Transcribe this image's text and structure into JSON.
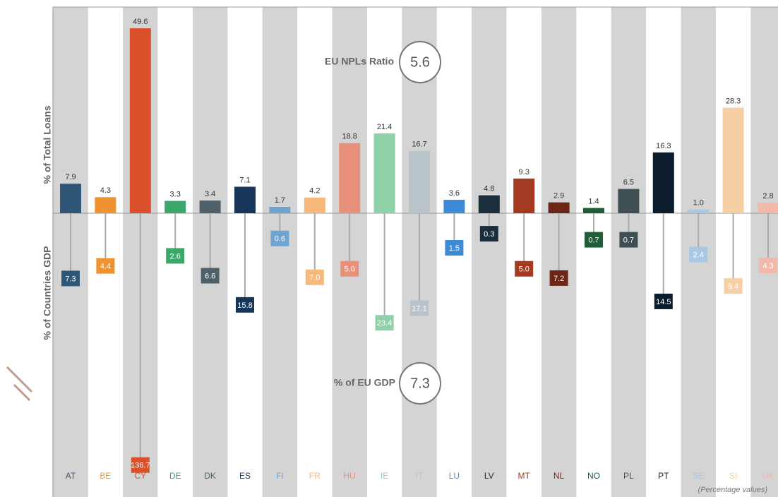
{
  "chart_data": {
    "type": "bar-lollipop",
    "axis_label_top": "% of Total Loans",
    "axis_label_bottom": "% of Countries GDP",
    "note": "(Percentage values)",
    "categories": [
      "AT",
      "BE",
      "CY",
      "DE",
      "DK",
      "ES",
      "FI",
      "FR",
      "HU",
      "IE",
      "IT",
      "LU",
      "LV",
      "MT",
      "NL",
      "NO",
      "PL",
      "PT",
      "SE",
      "SI",
      "UK"
    ],
    "colors": [
      "#2f5677",
      "#f0922f",
      "#d9502b",
      "#3aa86b",
      "#4f6069",
      "#17375a",
      "#6fa3d0",
      "#f5b97c",
      "#e8917a",
      "#8fd1a8",
      "#b9c4ca",
      "#3d8bd6",
      "#1a2e3b",
      "#a33a21",
      "#6e2614",
      "#1e5e38",
      "#3f4f54",
      "#0b1c2c",
      "#a9c8e4",
      "#f7cfa5",
      "#f2b8a8"
    ],
    "series": [
      {
        "values": [
          7.9,
          4.3,
          49.6,
          3.3,
          3.4,
          7.1,
          1.7,
          4.2,
          18.8,
          21.4,
          16.7,
          3.6,
          4.8,
          9.3,
          2.9,
          1.4,
          6.5,
          16.3,
          1.0,
          28.3,
          2.8
        ],
        "value_labels": [
          "7.9",
          "4.3",
          "49.6",
          "3.3",
          "3.4",
          "7.1",
          "1.7",
          "4.2",
          "18.8",
          "21.4",
          "16.7",
          "3.6",
          "4.8",
          "9.3",
          "2.9",
          "1.4",
          "6.5",
          "16.3",
          "1.0",
          "28.3",
          "2.8"
        ]
      },
      {
        "values": [
          7.3,
          4.4,
          136.7,
          2.6,
          6.6,
          15.8,
          0.6,
          7.0,
          5.0,
          23.4,
          17.1,
          1.5,
          0.3,
          5.0,
          7.2,
          0.7,
          0.7,
          14.5,
          2.4,
          9.4,
          4.3
        ],
        "value_labels": [
          "7.3",
          "4.4",
          "136.7",
          "2.6",
          "6.6",
          "15.8",
          "0.6",
          "7.0",
          "5.0",
          "23.4",
          "17.1",
          "1.5",
          "0.3",
          "5.0",
          "7.2",
          "0.7",
          "0.7",
          "14.5",
          "2.4",
          "9.4",
          "4.3"
        ]
      }
    ],
    "annotations": [
      {
        "label": "EU NPLs Ratio",
        "value": 5.6
      },
      {
        "label": "% of EU GDP",
        "value": 7.3
      }
    ]
  }
}
